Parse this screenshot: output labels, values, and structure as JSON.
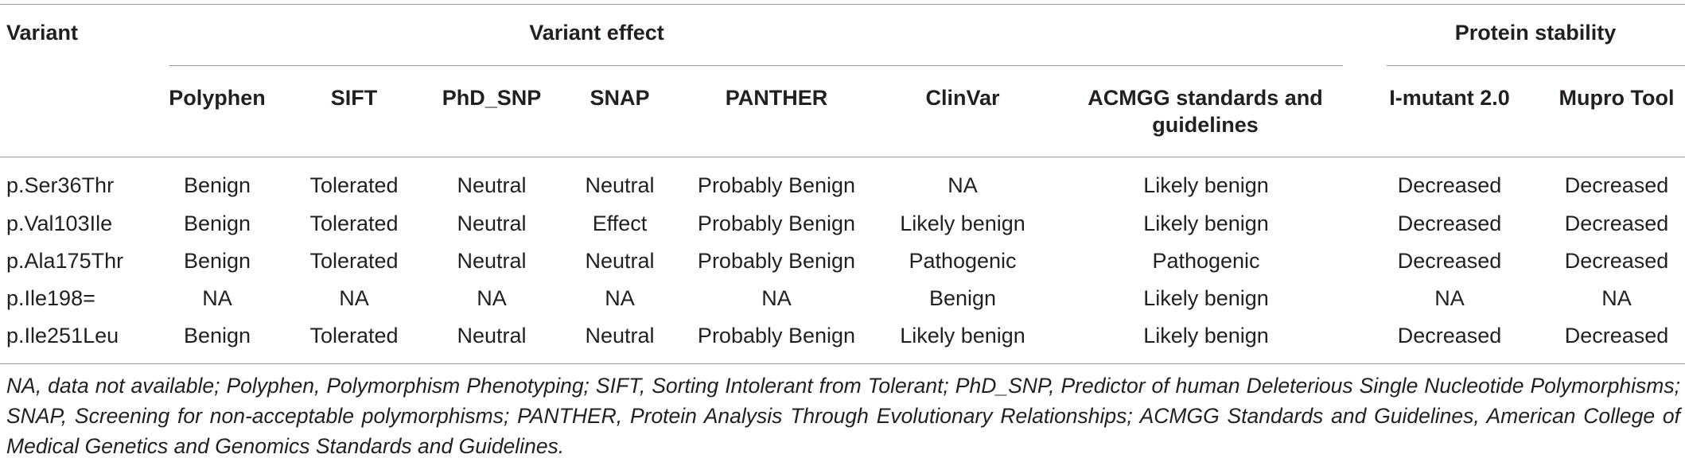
{
  "header": {
    "variant": "Variant",
    "variant_effect": "Variant effect",
    "protein_stability": "Protein stability",
    "columns": [
      "Polyphen",
      "SIFT",
      "PhD_SNP",
      "SNAP",
      "PANTHER",
      "ClinVar",
      "ACMGG standards and guidelines",
      "I-mutant 2.0",
      "Mupro Tool"
    ]
  },
  "rows": [
    {
      "variant": "p.Ser36Thr",
      "cells": [
        "Benign",
        "Tolerated",
        "Neutral",
        "Neutral",
        "Probably Benign",
        "NA",
        "Likely benign",
        "Decreased",
        "Decreased"
      ]
    },
    {
      "variant": "p.Val103Ile",
      "cells": [
        "Benign",
        "Tolerated",
        "Neutral",
        "Effect",
        "Probably Benign",
        "Likely benign",
        "Likely benign",
        "Decreased",
        "Decreased"
      ]
    },
    {
      "variant": "p.Ala175Thr",
      "cells": [
        "Benign",
        "Tolerated",
        "Neutral",
        "Neutral",
        "Probably Benign",
        "Pathogenic",
        "Pathogenic",
        "Decreased",
        "Decreased"
      ]
    },
    {
      "variant": "p.Ile198=",
      "cells": [
        "NA",
        "NA",
        "NA",
        "NA",
        "NA",
        "Benign",
        "Likely benign",
        "NA",
        "NA"
      ]
    },
    {
      "variant": "p.Ile251Leu",
      "cells": [
        "Benign",
        "Tolerated",
        "Neutral",
        "Neutral",
        "Probably Benign",
        "Likely benign",
        "Likely benign",
        "Decreased",
        "Decreased"
      ]
    }
  ],
  "footnote": "NA, data not available; Polyphen, Polymorphism Phenotyping; SIFT, Sorting Intolerant from Tolerant; PhD_SNP, Predictor of human Deleterious Single Nucleotide Polymorphisms; SNAP, Screening for non-acceptable polymorphisms; PANTHER, Protein Analysis Through Evolutionary Relationships; ACMGG Standards and Guidelines, American College of Medical Genetics and Genomics Standards and Guidelines."
}
